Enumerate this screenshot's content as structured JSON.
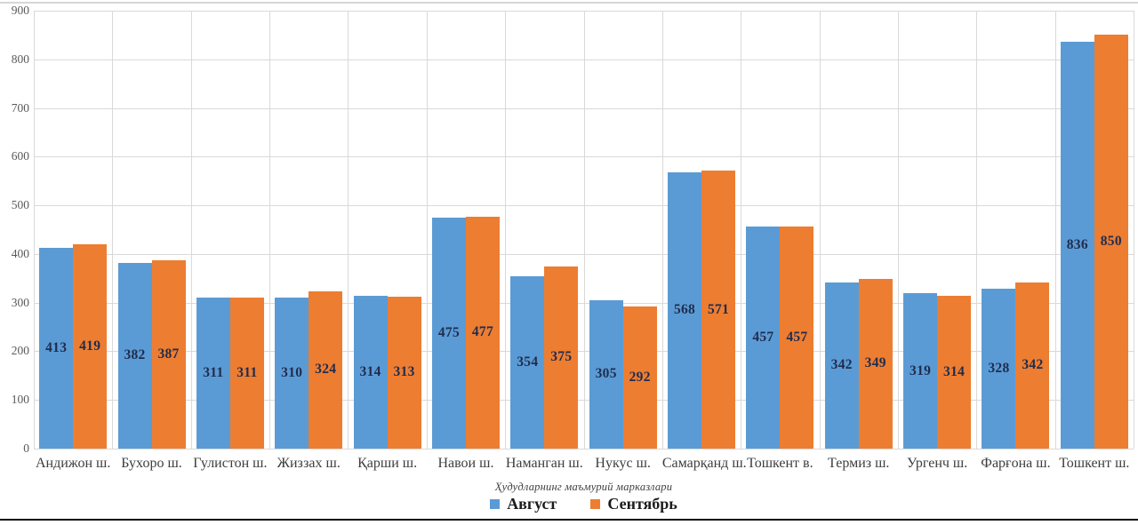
{
  "chart_data": {
    "type": "bar",
    "categories": [
      "Андижон ш.",
      "Бухоро ш.",
      "Гулистон ш.",
      "Жиззах ш.",
      "Қарши ш.",
      "Навои ш.",
      "Наманган ш.",
      "Нукус ш.",
      "Самарқанд ш.",
      "Тошкент в.",
      "Термиз ш.",
      "Ургенч ш.",
      "Фарғона ш.",
      "Тошкент ш."
    ],
    "series": [
      {
        "name": "Август",
        "color": "#5b9bd5",
        "values": [
          413,
          382,
          311,
          310,
          314,
          475,
          354,
          305,
          568,
          457,
          342,
          319,
          328,
          836
        ]
      },
      {
        "name": "Сентябрь",
        "color": "#ed7d31",
        "values": [
          419,
          387,
          311,
          324,
          313,
          477,
          375,
          292,
          571,
          457,
          349,
          314,
          342,
          850
        ]
      }
    ],
    "title": "",
    "xlabel": "Ҳудудларнинг маъмурий марказлари",
    "ylabel": "",
    "ylim": [
      0,
      900
    ],
    "ytick_step": 100,
    "yticks": [
      0,
      100,
      200,
      300,
      400,
      500,
      600,
      700,
      800,
      900
    ],
    "grid": true,
    "legend_position": "bottom",
    "bar_label_color": "#1f2c4e",
    "gridline_color": "#d9d9d9"
  }
}
